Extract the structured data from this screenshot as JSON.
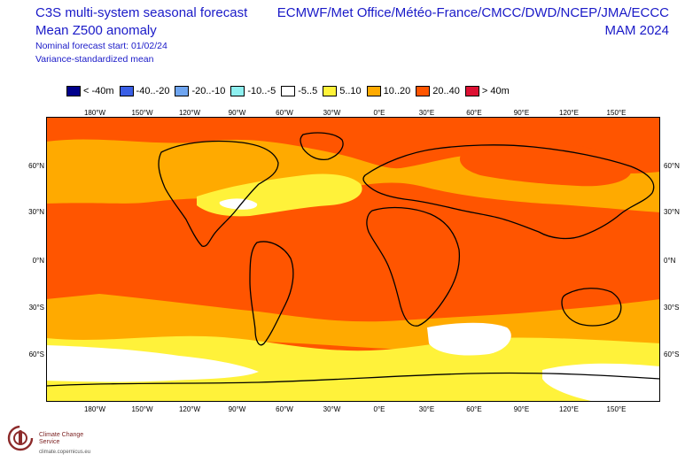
{
  "header": {
    "title_main": "C3S multi-system seasonal forecast",
    "title_sub": "Mean Z500 anomaly",
    "note_start": "Nominal forecast start: 01/02/24",
    "note_mean": "Variance-standardized mean",
    "providers": "ECMWF/Met Office/Météo-France/CMCC/DWD/NCEP/JMA/ECCC",
    "season": "MAM 2024"
  },
  "legend": [
    {
      "label": "< -40m",
      "color": "#00008b"
    },
    {
      "label": "-40..-20",
      "color": "#3a5fe6"
    },
    {
      "label": "-20..-10",
      "color": "#6fa5f0"
    },
    {
      "label": "-10..-5",
      "color": "#8ef0f0"
    },
    {
      "label": "-5..5",
      "color": "#ffffff"
    },
    {
      "label": "5..10",
      "color": "#fff23a"
    },
    {
      "label": "10..20",
      "color": "#ffaa00"
    },
    {
      "label": "20..40",
      "color": "#ff5500"
    },
    {
      "label": "> 40m",
      "color": "#dd1133"
    }
  ],
  "axes": {
    "lon_top": [
      "180°W",
      "150°W",
      "120°W",
      "90°W",
      "60°W",
      "30°W",
      "0°E",
      "30°E",
      "60°E",
      "90°E",
      "120°E",
      "150°E"
    ],
    "lon_bottom": [
      "180°W",
      "150°W",
      "120°W",
      "90°W",
      "60°W",
      "30°W",
      "0°E",
      "30°E",
      "60°E",
      "90°E",
      "120°E",
      "150°E"
    ],
    "lat_left": [
      "60°N",
      "30°N",
      "0°N",
      "30°S",
      "60°S"
    ],
    "lat_right": [
      "60°N",
      "30°N",
      "0°N",
      "30°S",
      "60°S"
    ]
  },
  "logo": {
    "name": "Climate Change Service",
    "url": "climate.copernicus.eu"
  }
}
